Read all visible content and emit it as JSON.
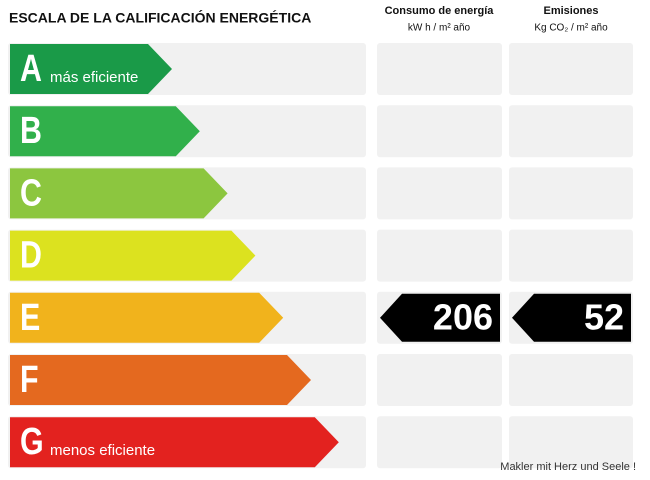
{
  "header": {
    "title": "ESCALA DE LA CALIFICACIÓN ENERGÉTICA",
    "columns": [
      {
        "title": "Consumo de energía",
        "unit": "kW h / m² año"
      },
      {
        "title": "Emisiones",
        "unit": "Kg CO₂ / m² año"
      }
    ]
  },
  "ratings": [
    {
      "letter": "A",
      "note": "más eficiente",
      "color": "#1a9a48"
    },
    {
      "letter": "B",
      "color": "#31b04b"
    },
    {
      "letter": "C",
      "color": "#8cc63f"
    },
    {
      "letter": "D",
      "color": "#dce21f"
    },
    {
      "letter": "E",
      "color": "#f1b31c",
      "consumption": 206,
      "emissions": 52
    },
    {
      "letter": "F",
      "color": "#e4691f"
    },
    {
      "letter": "G",
      "note": "menos eficiente",
      "color": "#e3221f"
    }
  ],
  "footer": "Makler mit Herz und Seele !"
}
